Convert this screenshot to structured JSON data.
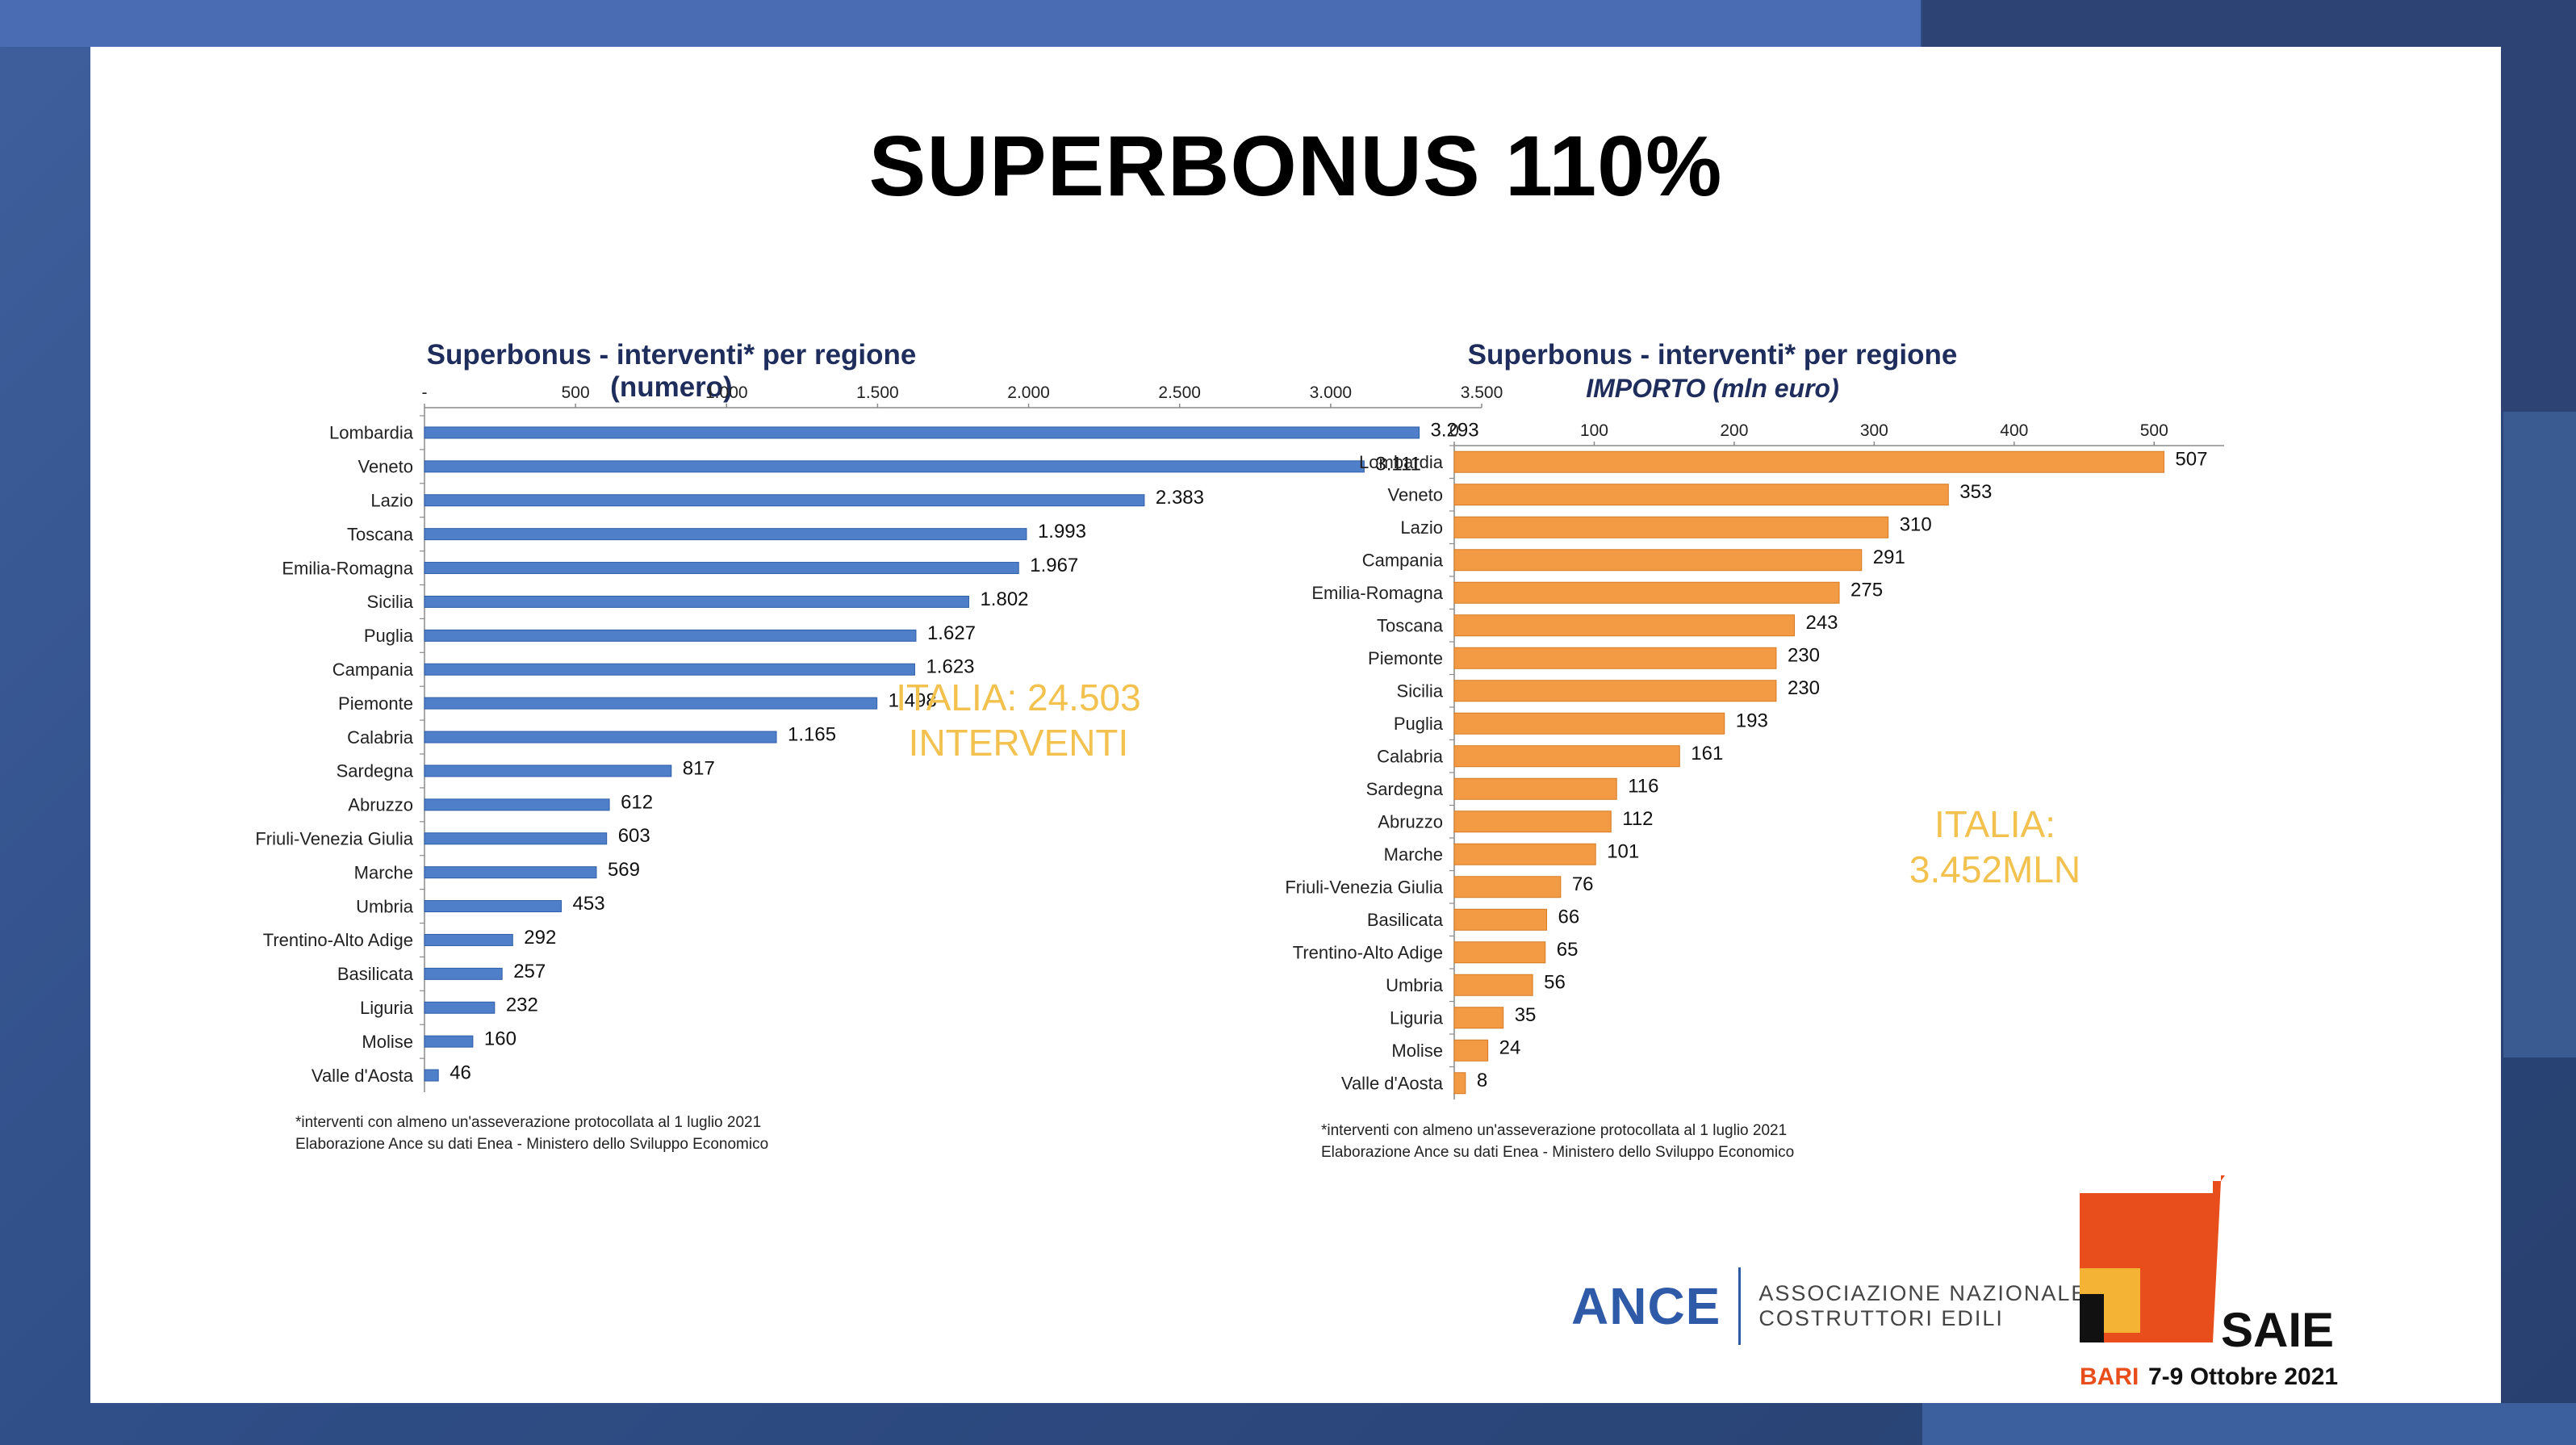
{
  "slide_title": "SUPERBONUS 110%",
  "left_chart": {
    "title": "Superbonus - interventi* per regione (numero)",
    "italia_line1": "ITALIA: 24.503",
    "italia_line2": "INTERVENTI",
    "note_line1": "*interventi con almeno un'asseverazione protocollata al 1 luglio 2021",
    "note_line2": "Elaborazione Ance su dati Enea - Ministero dello Sviluppo Economico"
  },
  "right_chart": {
    "title": "Superbonus - interventi* per regione",
    "subtitle": "IMPORTO  (mln euro)",
    "italia_line1": "ITALIA:",
    "italia_line2": "3.452MLN",
    "note_line1": "*interventi con almeno un'asseverazione protocollata al 1 luglio 2021",
    "note_line2": "Elaborazione Ance su dati Enea - Ministero dello Sviluppo Economico"
  },
  "logos": {
    "ance_word": "ANCE",
    "ance_sub1": "ASSOCIAZIONE NAZIONALE",
    "ance_sub2": "COSTRUTTORI EDILI",
    "saie_word": "SAIE",
    "saie_city": "BARI",
    "saie_dates": "7-9 Ottobre 2021"
  },
  "colors": {
    "blue_bar": "#4f7fc9",
    "orange_bar": "#f29a44",
    "italia_text": "#f2c14e",
    "title_navy": "#1f2d5c"
  },
  "chart_data": [
    {
      "type": "bar",
      "orientation": "horizontal",
      "title": "Superbonus - interventi* per regione (numero)",
      "categories": [
        "Lombardia",
        "Veneto",
        "Lazio",
        "Toscana",
        "Emilia-Romagna",
        "Sicilia",
        "Puglia",
        "Campania",
        "Piemonte",
        "Calabria",
        "Sardegna",
        "Abruzzo",
        "Friuli-Venezia Giulia",
        "Marche",
        "Umbria",
        "Trentino-Alto Adige",
        "Basilicata",
        "Liguria",
        "Molise",
        "Valle d'Aosta"
      ],
      "values": [
        3293,
        3111,
        2383,
        1993,
        1967,
        1802,
        1627,
        1623,
        1498,
        1165,
        817,
        612,
        603,
        569,
        453,
        292,
        257,
        232,
        160,
        46
      ],
      "value_labels": [
        "3.293",
        "3.111",
        "2.383",
        "1.993",
        "1.967",
        "1.802",
        "1.627",
        "1.623",
        "1.498",
        "1.165",
        "817",
        "612",
        "603",
        "569",
        "453",
        "292",
        "257",
        "232",
        "160",
        "46"
      ],
      "xlim": [
        0,
        3500
      ],
      "xticks": [
        0,
        500,
        1000,
        1500,
        2000,
        2500,
        3000,
        3500
      ],
      "xtick_labels": [
        "-",
        "500",
        "1.000",
        "1.500",
        "2.000",
        "2.500",
        "3.000",
        "3.500"
      ],
      "axis_position": "top",
      "grid": false
    },
    {
      "type": "bar",
      "orientation": "horizontal",
      "title": "Superbonus - interventi* per regione",
      "subtitle": "IMPORTO  (mln euro)",
      "categories": [
        "Lombardia",
        "Veneto",
        "Lazio",
        "Campania",
        "Emilia-Romagna",
        "Toscana",
        "Piemonte",
        "Sicilia",
        "Puglia",
        "Calabria",
        "Sardegna",
        "Abruzzo",
        "Marche",
        "Friuli-Venezia Giulia",
        "Basilicata",
        "Trentino-Alto Adige",
        "Umbria",
        "Liguria",
        "Molise",
        "Valle d'Aosta"
      ],
      "values": [
        507,
        353,
        310,
        291,
        275,
        243,
        230,
        230,
        193,
        161,
        116,
        112,
        101,
        76,
        66,
        65,
        56,
        35,
        24,
        8
      ],
      "value_labels": [
        "507",
        "353",
        "310",
        "291",
        "275",
        "243",
        "230",
        "230",
        "193",
        "161",
        "116",
        "112",
        "101",
        "76",
        "66",
        "65",
        "56",
        "35",
        "24",
        "8"
      ],
      "xlim": [
        0,
        550
      ],
      "xticks": [
        0,
        100,
        200,
        300,
        400,
        500
      ],
      "xtick_labels": [
        "0",
        "100",
        "200",
        "300",
        "400",
        "500"
      ],
      "axis_position": "top",
      "grid": false
    }
  ]
}
